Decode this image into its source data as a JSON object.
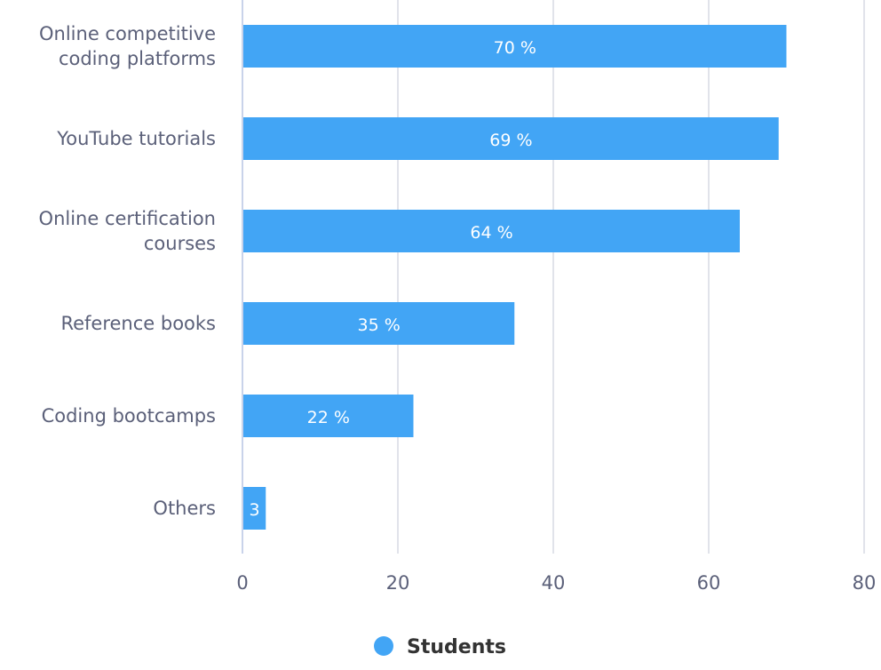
{
  "chart_data": {
    "type": "bar",
    "orientation": "horizontal",
    "categories": [
      "Online competitive coding platforms",
      "YouTube tutorials",
      "Online certification courses",
      "Reference books",
      "Coding bootcamps",
      "Others"
    ],
    "category_lines": [
      [
        "Online competitive",
        "coding platforms"
      ],
      [
        "YouTube tutorials"
      ],
      [
        "Online certification",
        "courses"
      ],
      [
        "Reference books"
      ],
      [
        "Coding bootcamps"
      ],
      [
        "Others"
      ]
    ],
    "series": [
      {
        "name": "Students",
        "values": [
          70,
          69,
          64,
          35,
          22,
          3
        ],
        "color": "#42a5f5"
      }
    ],
    "data_label_suffix": " %",
    "xlim": [
      0,
      80
    ],
    "xticks": [
      0,
      20,
      40,
      60,
      80
    ],
    "grid": true,
    "grid_color": "#e1e3ea",
    "legend_position": "bottom"
  }
}
